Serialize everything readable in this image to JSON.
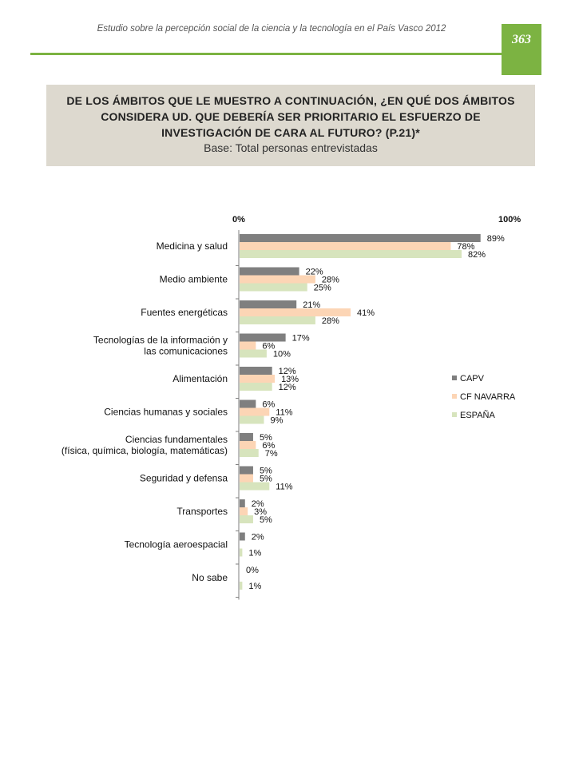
{
  "header": {
    "running_title": "Estudio sobre la percepción social de la ciencia y la tecnología en el País Vasco 2012",
    "page_number": "363",
    "accent_color": "#7cb342"
  },
  "question": {
    "text": "DE LOS ÁMBITOS QUE LE MUESTRO A CONTINUACIÓN, ¿EN QUÉ DOS ÁMBITOS CONSIDERA UD. QUE DEBERÍA SER PRIORITARIO EL ESFUERZO DE INVESTIGACIÓN DE CARA AL FUTURO?",
    "ref": "(P.21)*",
    "base": "Base: Total personas entrevistadas"
  },
  "chart_data": {
    "type": "bar",
    "orientation": "horizontal",
    "axis_min_label": "0%",
    "axis_max_label": "100%",
    "xlim": [
      0,
      100
    ],
    "grid": false,
    "legend_position": "right",
    "categories": [
      [
        "Medicina y salud"
      ],
      [
        "Medio ambiente"
      ],
      [
        "Fuentes energéticas"
      ],
      [
        "Tecnologías de la información y",
        "las comunicaciones"
      ],
      [
        "Alimentación"
      ],
      [
        "Ciencias humanas y sociales"
      ],
      [
        "Ciencias fundamentales",
        "(física, química, biología, matemáticas)"
      ],
      [
        "Seguridad y defensa"
      ],
      [
        "Transportes"
      ],
      [
        "Tecnología aeroespacial"
      ],
      [
        "No sabe"
      ]
    ],
    "series": [
      {
        "name": "CAPV",
        "color": "#7f7f7f",
        "values": [
          89,
          22,
          21,
          17,
          12,
          6,
          5,
          5,
          2,
          2,
          0
        ]
      },
      {
        "name": "CF NAVARRA",
        "color": "#fcd5b5",
        "values": [
          78,
          28,
          41,
          6,
          13,
          11,
          6,
          5,
          3,
          null,
          null
        ]
      },
      {
        "name": "ESPAÑA",
        "color": "#d7e4bd",
        "values": [
          82,
          25,
          28,
          10,
          12,
          9,
          7,
          11,
          5,
          1,
          1
        ]
      }
    ]
  }
}
